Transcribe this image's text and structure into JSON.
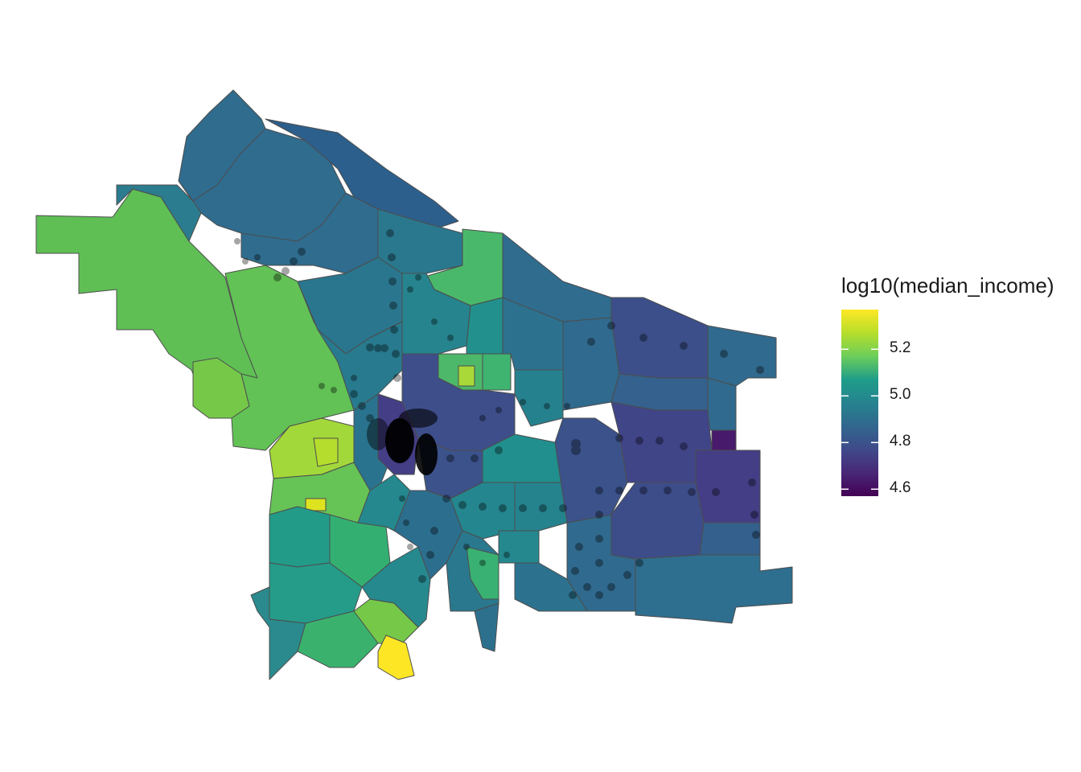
{
  "map": {
    "fill_low": "#440154",
    "fill_high": "#fde725",
    "border_color": "#4d4d4d",
    "point_color": "#000000"
  },
  "legend": {
    "title": "log10(median_income)",
    "range": [
      4.57,
      5.37
    ],
    "ticks": [
      {
        "value": 5.2,
        "label": "5.2"
      },
      {
        "value": 5.0,
        "label": "5.0"
      },
      {
        "value": 4.8,
        "label": "4.8"
      },
      {
        "value": 4.6,
        "label": "4.6"
      }
    ],
    "palette": [
      "#440154",
      "#482777",
      "#3f4a8a",
      "#31678e",
      "#26838f",
      "#1f9d8a",
      "#6cce5a",
      "#b6de2b",
      "#fee825"
    ]
  }
}
